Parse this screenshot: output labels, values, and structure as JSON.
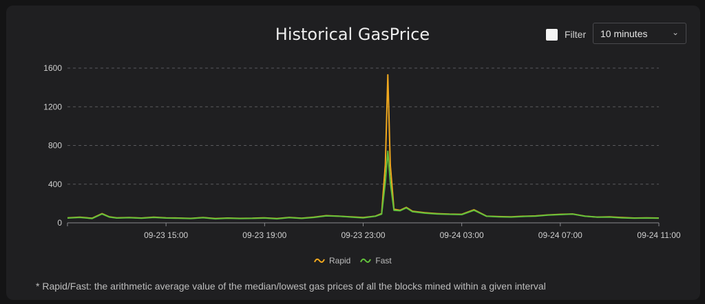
{
  "header": {
    "title": "Historical GasPrice",
    "filter_label": "Filter",
    "interval_selected": "10 minutes"
  },
  "footnote": "* Rapid/Fast: the arithmetic average value of the median/lowest gas prices of all the blocks mined within a given interval",
  "colors": {
    "rapid": "#f0a81e",
    "fast": "#62c13c",
    "grid": "#5a5a5e"
  },
  "chart_data": {
    "type": "line",
    "title": "Historical GasPrice",
    "ylim": [
      0,
      1600
    ],
    "yticks": [
      0,
      400,
      800,
      1200,
      1600
    ],
    "xlim": [
      "09-23 11:00",
      "09-24 11:00"
    ],
    "xticks": [
      "09-23 15:00",
      "09-23 19:00",
      "09-23 23:00",
      "09-24 03:00",
      "09-24 07:00",
      "09-24 11:00"
    ],
    "grid": true,
    "legend": "bottom-center",
    "x": [
      0,
      0.5,
      1,
      1.4,
      1.7,
      2,
      2.5,
      3,
      3.5,
      4,
      4.5,
      5,
      5.5,
      6,
      6.5,
      7,
      7.5,
      8,
      8.5,
      9,
      9.5,
      10,
      10.5,
      11,
      11.5,
      12,
      12.5,
      12.75,
      12.9,
      13,
      13.1,
      13.25,
      13.5,
      13.75,
      14,
      14.5,
      15,
      15.5,
      16,
      16.5,
      17,
      17.5,
      18,
      18.5,
      19,
      19.5,
      20,
      20.5,
      21,
      21.5,
      22,
      22.5,
      23,
      23.5,
      24
    ],
    "series": [
      {
        "name": "Rapid",
        "values": [
          52,
          58,
          48,
          95,
          62,
          52,
          55,
          50,
          58,
          52,
          50,
          46,
          55,
          44,
          50,
          46,
          48,
          52,
          44,
          56,
          48,
          58,
          75,
          70,
          62,
          55,
          70,
          95,
          600,
          1530,
          600,
          140,
          130,
          160,
          120,
          105,
          95,
          90,
          88,
          135,
          70,
          65,
          62,
          68,
          72,
          82,
          88,
          92,
          70,
          60,
          62,
          55,
          50,
          52,
          50
        ]
      },
      {
        "name": "Fast",
        "values": [
          50,
          56,
          45,
          92,
          60,
          50,
          53,
          48,
          56,
          50,
          48,
          44,
          53,
          42,
          48,
          44,
          46,
          50,
          42,
          54,
          46,
          56,
          72,
          68,
          60,
          52,
          68,
          90,
          420,
          740,
          420,
          130,
          125,
          155,
          115,
          100,
          92,
          88,
          85,
          130,
          68,
          62,
          60,
          66,
          70,
          80,
          85,
          90,
          68,
          58,
          60,
          52,
          48,
          50,
          48
        ]
      }
    ]
  }
}
